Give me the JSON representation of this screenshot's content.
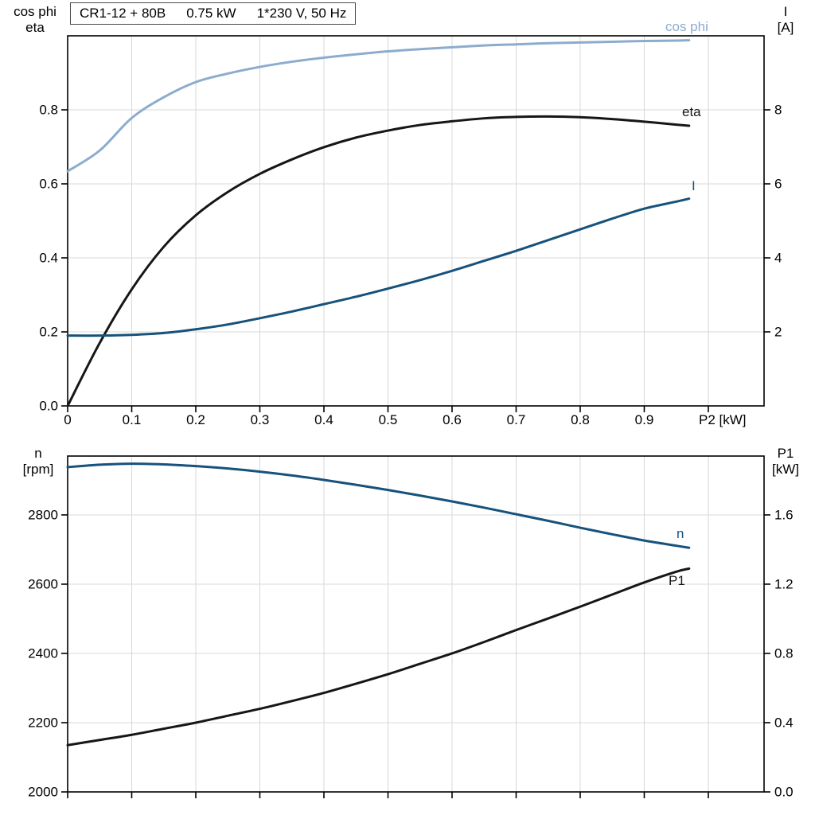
{
  "header": {
    "title_model": "CR1-12 + 80B",
    "title_power": "0.75 kW",
    "title_supply": "1*230 V, 50 Hz"
  },
  "axis_corner_labels": {
    "top_left_line1": "cos phi",
    "top_left_line2": "eta",
    "top_right_line1": "I",
    "top_right_line2": "[A]",
    "bottom_left_line1": "n",
    "bottom_left_line2": "[rpm]",
    "bottom_right_line1": "P1",
    "bottom_right_line2": "[kW]",
    "x_axis_label": "P2 [kW]"
  },
  "curve_labels": {
    "cos_phi": "cos phi",
    "eta": "eta",
    "current": "I",
    "speed": "n",
    "power_in": "P1"
  },
  "colors": {
    "light_blue": "#8caccd",
    "dark_blue": "#16527c",
    "black": "#161616",
    "grid": "#d8d8d8",
    "frame": "#000000"
  },
  "chart_data": [
    {
      "type": "line",
      "title": "CR1-12 + 80B  0.75 kW  1*230 V, 50 Hz",
      "x": {
        "label": "P2 [kW]",
        "range": [
          0,
          1.087
        ],
        "ticks": [
          0,
          0.1,
          0.2,
          0.3,
          0.4,
          0.5,
          0.6,
          0.7,
          0.8,
          0.9,
          1.0
        ],
        "tick_labels": [
          "0",
          "0.1",
          "0.2",
          "0.3",
          "0.4",
          "0.5",
          "0.6",
          "0.7",
          "0.8",
          "0.9",
          ""
        ]
      },
      "y_left": {
        "label": "cos phi, eta",
        "range": [
          0,
          1.0
        ],
        "ticks": [
          0,
          0.2,
          0.4,
          0.6,
          0.8
        ],
        "tick_labels": [
          "0.0",
          "0.2",
          "0.4",
          "0.6",
          "0.8"
        ]
      },
      "y_right": {
        "label": "I [A]",
        "range": [
          0,
          10
        ],
        "ticks": [
          2,
          4,
          6,
          8
        ],
        "tick_labels": [
          "2",
          "4",
          "6",
          "8"
        ]
      },
      "grid": true,
      "legend_position": "inline-right",
      "x_values": [
        0,
        0.05,
        0.1,
        0.15,
        0.2,
        0.25,
        0.3,
        0.35,
        0.4,
        0.45,
        0.5,
        0.55,
        0.6,
        0.65,
        0.7,
        0.75,
        0.8,
        0.85,
        0.9,
        0.95,
        0.97
      ],
      "series": [
        {
          "name": "cos phi",
          "id": "cos-phi",
          "axis": "left",
          "color_key": "light_blue",
          "values": [
            0.634,
            0.69,
            0.778,
            0.834,
            0.875,
            0.898,
            0.916,
            0.93,
            0.941,
            0.95,
            0.958,
            0.964,
            0.969,
            0.974,
            0.977,
            0.98,
            0.982,
            0.984,
            0.986,
            0.987,
            0.988
          ]
        },
        {
          "name": "eta",
          "id": "eta",
          "axis": "left",
          "color_key": "black",
          "values": [
            0,
            0.17,
            0.315,
            0.43,
            0.515,
            0.578,
            0.627,
            0.666,
            0.699,
            0.725,
            0.744,
            0.759,
            0.769,
            0.777,
            0.781,
            0.782,
            0.78,
            0.775,
            0.768,
            0.76,
            0.757
          ]
        },
        {
          "name": "I",
          "id": "current",
          "axis": "right",
          "color_key": "dark_blue",
          "values": [
            1.9,
            1.9,
            1.92,
            1.97,
            2.07,
            2.2,
            2.37,
            2.55,
            2.75,
            2.95,
            3.17,
            3.4,
            3.65,
            3.92,
            4.19,
            4.48,
            4.77,
            5.06,
            5.33,
            5.52,
            5.6
          ]
        }
      ]
    },
    {
      "type": "line",
      "title": "Speed and input power vs shaft power",
      "x": {
        "label": "P2 [kW]",
        "range": [
          0,
          1.087
        ],
        "ticks": [
          0,
          0.1,
          0.2,
          0.3,
          0.4,
          0.5,
          0.6,
          0.7,
          0.8,
          0.9,
          1.0
        ],
        "tick_labels": [
          "",
          "",
          "",
          "",
          "",
          "",
          "",
          "",
          "",
          "",
          ""
        ]
      },
      "y_left": {
        "label": "n [rpm]",
        "range": [
          2000,
          2970
        ],
        "ticks": [
          2000,
          2200,
          2400,
          2600,
          2800
        ],
        "tick_labels": [
          "2000",
          "2200",
          "2400",
          "2600",
          "2800"
        ]
      },
      "y_right": {
        "label": "P1 [kW]",
        "range": [
          0,
          1.94
        ],
        "ticks": [
          0,
          0.4,
          0.8,
          1.2,
          1.6
        ],
        "tick_labels": [
          "0.0",
          "0.4",
          "0.8",
          "1.2",
          "1.6"
        ]
      },
      "grid": true,
      "legend_position": "inline-right",
      "x_values": [
        0,
        0.05,
        0.1,
        0.15,
        0.2,
        0.25,
        0.3,
        0.35,
        0.4,
        0.45,
        0.5,
        0.55,
        0.6,
        0.65,
        0.7,
        0.75,
        0.8,
        0.85,
        0.9,
        0.95,
        0.97
      ],
      "series": [
        {
          "name": "n",
          "id": "speed",
          "axis": "left",
          "color_key": "dark_blue",
          "values": [
            2938,
            2945,
            2948,
            2946,
            2941,
            2934,
            2925,
            2914,
            2901,
            2887,
            2872,
            2856,
            2839,
            2821,
            2802,
            2783,
            2763,
            2744,
            2726,
            2711,
            2705
          ]
        },
        {
          "name": "P1",
          "id": "power-input",
          "axis": "right",
          "color_key": "black",
          "values": [
            0.27,
            0.3,
            0.33,
            0.365,
            0.4,
            0.44,
            0.48,
            0.525,
            0.572,
            0.625,
            0.68,
            0.74,
            0.8,
            0.866,
            0.935,
            1.002,
            1.07,
            1.14,
            1.21,
            1.272,
            1.29
          ]
        }
      ]
    }
  ]
}
